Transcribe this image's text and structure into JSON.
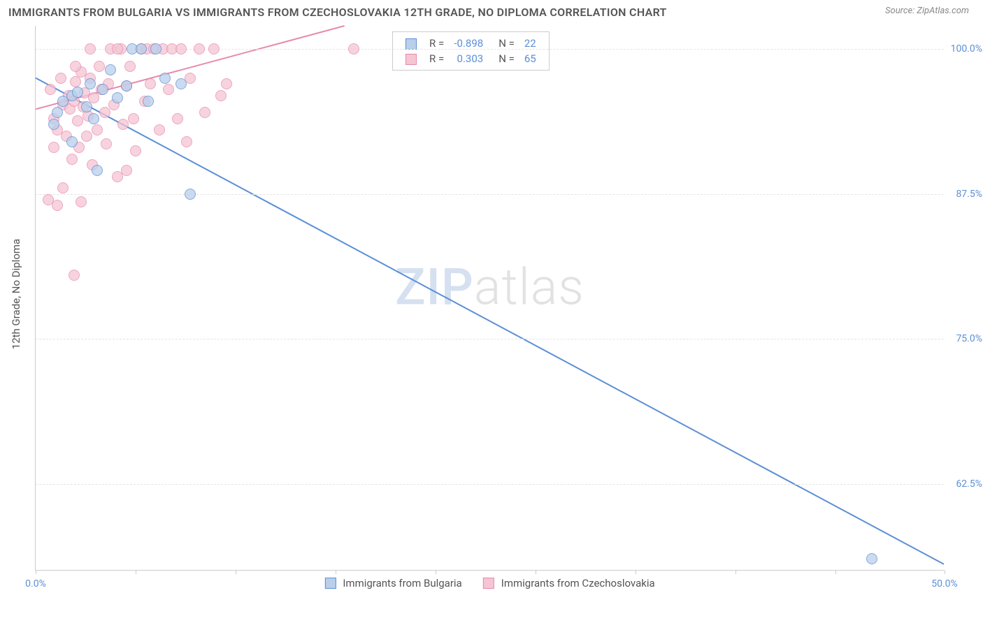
{
  "header": {
    "title": "IMMIGRANTS FROM BULGARIA VS IMMIGRANTS FROM CZECHOSLOVAKIA 12TH GRADE, NO DIPLOMA CORRELATION CHART",
    "source": "Source: ZipAtlas.com"
  },
  "chart": {
    "type": "scatter",
    "y_axis_label": "12th Grade, No Diploma",
    "watermark_pre": "ZIP",
    "watermark_post": "atlas",
    "xlim": [
      0,
      50
    ],
    "ylim": [
      55,
      102
    ],
    "x_ticks": [
      0,
      5.5,
      11,
      16.5,
      22,
      27.5,
      33,
      38.5,
      44,
      50
    ],
    "x_tick_labels": {
      "0": "0.0%",
      "50": "50.0%"
    },
    "y_ticks": [
      62.5,
      75.0,
      87.5,
      100.0
    ],
    "y_tick_labels": [
      "62.5%",
      "75.0%",
      "87.5%",
      "100.0%"
    ],
    "grid_color": "#e4e4e4",
    "background_color": "#ffffff",
    "series": [
      {
        "name": "Immigrants from Bulgaria",
        "color_fill": "#b9cfea",
        "color_stroke": "#5b8fd6",
        "marker_radius": 8,
        "R": "-0.898",
        "N": "22",
        "trend": {
          "x1": 0,
          "y1": 97.5,
          "x2": 50,
          "y2": 55.5
        },
        "points": [
          [
            1.0,
            93.5
          ],
          [
            1.5,
            95.5
          ],
          [
            2.0,
            96.0
          ],
          [
            2.3,
            96.3
          ],
          [
            2.8,
            95.0
          ],
          [
            3.0,
            97.0
          ],
          [
            3.2,
            94.0
          ],
          [
            3.7,
            96.5
          ],
          [
            4.1,
            98.2
          ],
          [
            4.5,
            95.8
          ],
          [
            5.0,
            96.8
          ],
          [
            5.3,
            100.0
          ],
          [
            5.8,
            100.0
          ],
          [
            6.2,
            95.5
          ],
          [
            6.6,
            100.0
          ],
          [
            7.1,
            97.5
          ],
          [
            8.0,
            97.0
          ],
          [
            8.5,
            87.5
          ],
          [
            3.4,
            89.5
          ],
          [
            2.0,
            92.0
          ],
          [
            1.2,
            94.5
          ],
          [
            46.0,
            56.0
          ]
        ]
      },
      {
        "name": "Immigrants from Czechoslovakia",
        "color_fill": "#f5c5d4",
        "color_stroke": "#e78aab",
        "marker_radius": 8,
        "R": "0.303",
        "N": "65",
        "trend": {
          "x1": 0,
          "y1": 94.8,
          "x2": 17,
          "y2": 102.0
        },
        "points": [
          [
            0.8,
            96.5
          ],
          [
            1.0,
            94.0
          ],
          [
            1.2,
            93.0
          ],
          [
            1.4,
            97.5
          ],
          [
            1.5,
            95.2
          ],
          [
            1.7,
            92.5
          ],
          [
            1.8,
            96.0
          ],
          [
            1.9,
            94.8
          ],
          [
            2.0,
            90.5
          ],
          [
            2.1,
            95.5
          ],
          [
            2.2,
            97.2
          ],
          [
            2.3,
            93.8
          ],
          [
            2.4,
            91.5
          ],
          [
            2.5,
            98.0
          ],
          [
            2.6,
            95.0
          ],
          [
            2.7,
            96.2
          ],
          [
            2.8,
            92.5
          ],
          [
            2.9,
            94.2
          ],
          [
            3.0,
            97.5
          ],
          [
            3.1,
            90.0
          ],
          [
            3.2,
            95.8
          ],
          [
            3.4,
            93.0
          ],
          [
            3.5,
            98.5
          ],
          [
            3.6,
            96.5
          ],
          [
            3.8,
            94.5
          ],
          [
            3.9,
            91.8
          ],
          [
            4.0,
            97.0
          ],
          [
            4.1,
            100.0
          ],
          [
            4.3,
            95.2
          ],
          [
            4.5,
            89.0
          ],
          [
            4.7,
            100.0
          ],
          [
            4.8,
            93.5
          ],
          [
            5.0,
            96.8
          ],
          [
            5.2,
            98.5
          ],
          [
            5.4,
            94.0
          ],
          [
            5.5,
            91.2
          ],
          [
            5.8,
            100.0
          ],
          [
            6.0,
            95.5
          ],
          [
            6.1,
            100.0
          ],
          [
            6.3,
            97.0
          ],
          [
            6.5,
            100.0
          ],
          [
            6.8,
            93.0
          ],
          [
            7.0,
            100.0
          ],
          [
            7.3,
            96.5
          ],
          [
            7.5,
            100.0
          ],
          [
            7.8,
            94.0
          ],
          [
            8.0,
            100.0
          ],
          [
            8.3,
            92.0
          ],
          [
            8.5,
            97.5
          ],
          [
            9.0,
            100.0
          ],
          [
            9.3,
            94.5
          ],
          [
            9.8,
            100.0
          ],
          [
            10.2,
            96.0
          ],
          [
            10.5,
            97.0
          ],
          [
            1.2,
            86.5
          ],
          [
            2.5,
            86.8
          ],
          [
            1.5,
            88.0
          ],
          [
            5.0,
            89.5
          ],
          [
            2.1,
            80.5
          ],
          [
            4.5,
            100.0
          ],
          [
            3.0,
            100.0
          ],
          [
            2.2,
            98.5
          ],
          [
            1.0,
            91.5
          ],
          [
            0.7,
            87.0
          ],
          [
            17.5,
            100.0
          ]
        ]
      }
    ],
    "stats_legend": {
      "r_label": "R =",
      "n_label": "N ="
    },
    "value_color": "#5b8fd6",
    "label_color": "#555"
  }
}
